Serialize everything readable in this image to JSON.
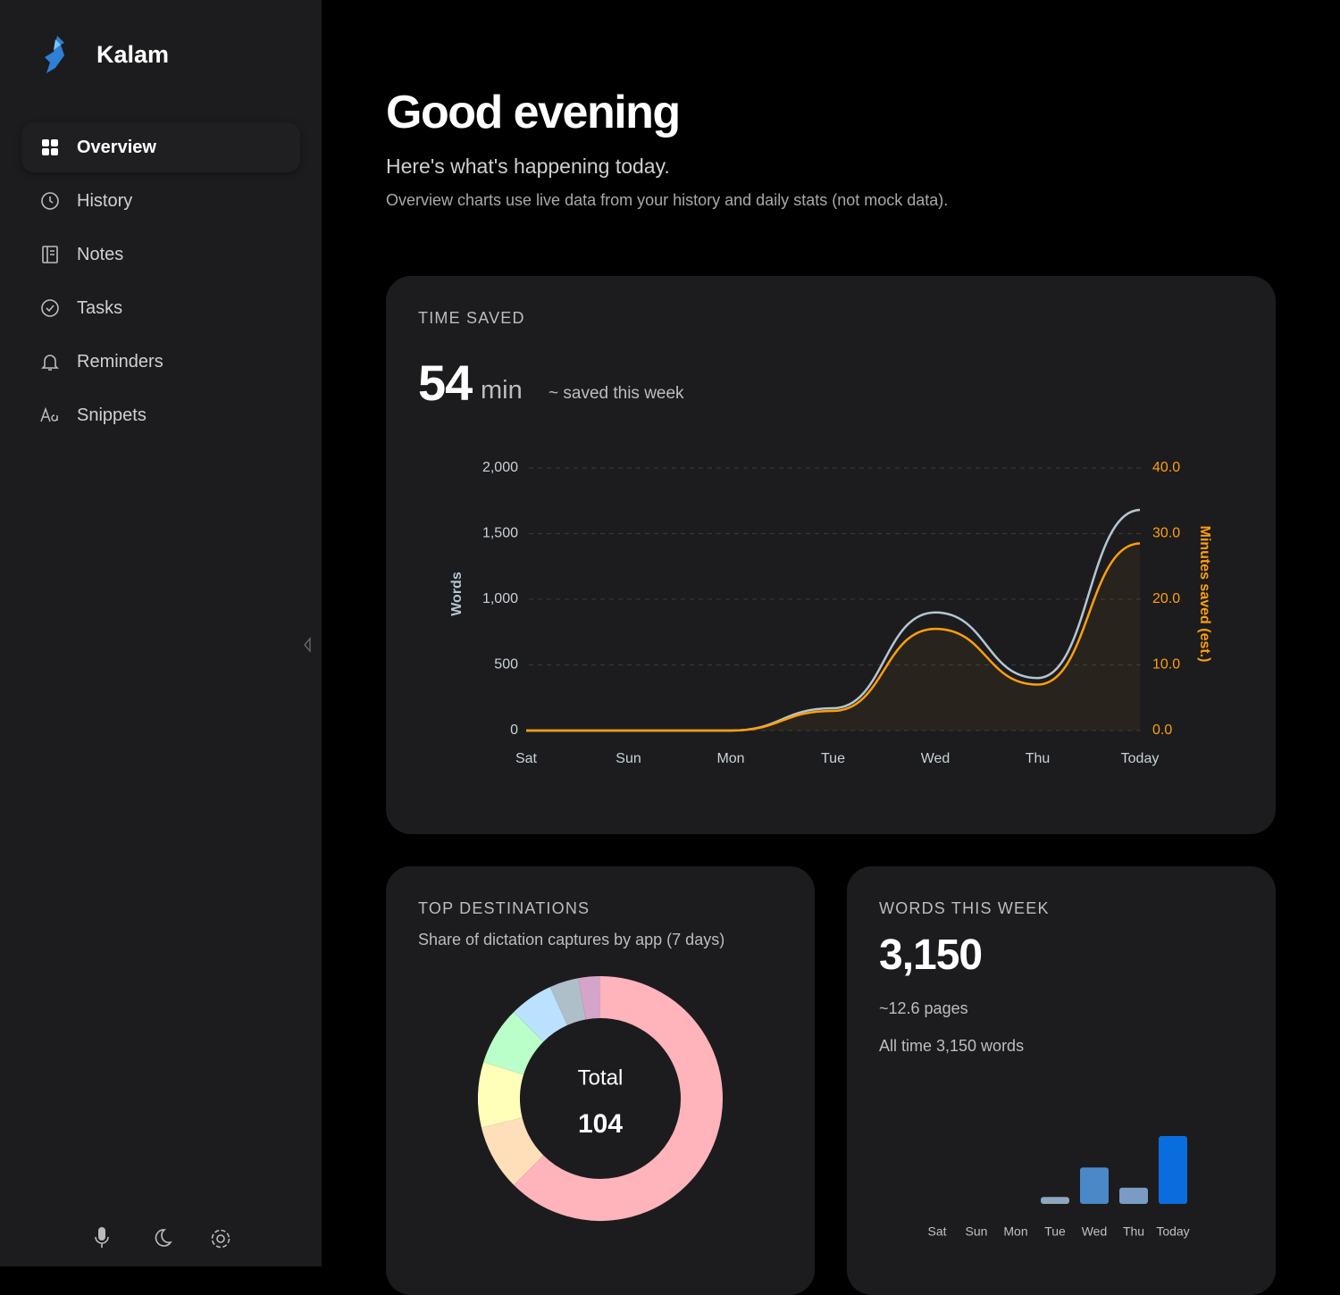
{
  "sidebar": {
    "app_name": "Kalam",
    "nav": [
      "Overview",
      "History",
      "Notes",
      "Tasks",
      "Reminders",
      "Snippets"
    ]
  },
  "header": {
    "title": "Good evening",
    "subtitle": "Here's what's happening today.",
    "note": "Overview charts use live data from your history and daily stats (not mock data)."
  },
  "chart_data": [
    {
      "type": "line",
      "title": "TIME SAVED",
      "headline_value": 54,
      "headline_unit": "min",
      "caption": "~ saved this week",
      "categories": [
        "Sat",
        "Sun",
        "Mon",
        "Tue",
        "Wed",
        "Thu",
        "Today"
      ],
      "ylabel": "Words",
      "y2label": "Minutes saved (est.)",
      "series": [
        {
          "color": "#b4c6d2",
          "values": [
            0,
            0,
            0,
            170,
            900,
            400,
            1680
          ]
        },
        {
          "color": "#ff9f0a",
          "axis": "y2",
          "values": [
            0,
            0,
            0,
            3,
            15.5,
            7,
            28.5
          ]
        }
      ],
      "ylim": [
        0,
        2000
      ],
      "yticks": [
        0,
        500,
        {
          "value": 1000,
          "label": "1,000"
        },
        {
          "value": 1500,
          "label": "1,500"
        },
        {
          "value": 2000,
          "label": "2,000"
        }
      ],
      "y2lim": [
        0,
        40
      ],
      "y2ticks": [
        {
          "value": 0,
          "label": "0.0"
        },
        {
          "value": 10,
          "label": "10.0"
        },
        {
          "value": 20,
          "label": "20.0"
        },
        {
          "value": 30,
          "label": "30.0"
        },
        {
          "value": 40,
          "label": "40.0"
        }
      ],
      "grid": true
    },
    {
      "type": "donut",
      "title": "TOP DESTINATIONS",
      "subtitle": "Share of dictation captures by app (7 days)",
      "center_label": "Total",
      "center_value": 104,
      "values": [
        65,
        9,
        9,
        8,
        6,
        4,
        3
      ],
      "colors": [
        "#ffb3ba",
        "#ffdfba",
        "#ffffba",
        "#baffc9",
        "#bae1ff",
        "#aebfc9",
        "#d4a5c9"
      ]
    },
    {
      "type": "bar",
      "title": "WORDS THIS WEEK",
      "headline": "3,150",
      "pages": "~12.6 pages",
      "all_time": "All time 3,150 words",
      "categories": [
        "Sat",
        "Sun",
        "Mon",
        "Tue",
        "Wed",
        "Thu",
        "Today"
      ],
      "values": [
        0,
        0,
        0,
        170,
        900,
        400,
        1680
      ],
      "colors": [
        "#8fa6bf",
        "#8fa6bf",
        "#8fa6bf",
        "#8fa6bf",
        "#4a88c8",
        "#7a9cc4",
        "#0a6ddd"
      ]
    }
  ]
}
